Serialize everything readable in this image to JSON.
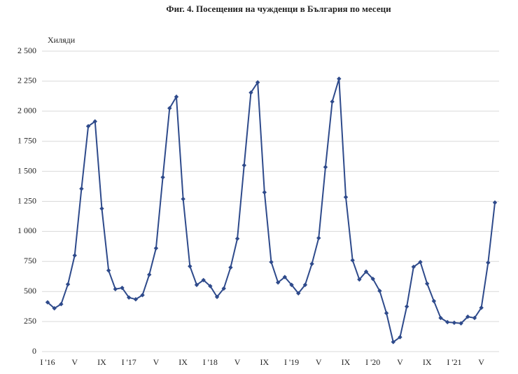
{
  "chart_data": {
    "type": "line",
    "title": "Фиг. 4. Посещения на чужденци в България по месеци",
    "y_label": "Хиляди",
    "categories": [
      "I '16",
      null,
      null,
      null,
      "V",
      null,
      null,
      null,
      "IX",
      null,
      null,
      null,
      "I '17",
      null,
      null,
      null,
      "V",
      null,
      null,
      null,
      "IX",
      null,
      null,
      null,
      "I '18",
      null,
      null,
      null,
      "V",
      null,
      null,
      null,
      "IX",
      null,
      null,
      null,
      "I '19",
      null,
      null,
      null,
      "V",
      null,
      null,
      null,
      "IX",
      null,
      null,
      null,
      "I '20",
      null,
      null,
      null,
      "V",
      null,
      null,
      null,
      "IX",
      null,
      null,
      null,
      "I '21",
      null,
      null,
      null,
      "V",
      null,
      null
    ],
    "series": [
      {
        "color": "#2e4a8b",
        "values": [
          410,
          360,
          395,
          560,
          800,
          1355,
          1875,
          1915,
          1190,
          675,
          520,
          530,
          450,
          435,
          470,
          640,
          860,
          1450,
          2025,
          2120,
          1270,
          710,
          555,
          595,
          545,
          455,
          525,
          700,
          940,
          1550,
          2155,
          2240,
          1325,
          745,
          575,
          620,
          555,
          485,
          555,
          730,
          945,
          1535,
          2080,
          2270,
          1285,
          760,
          600,
          665,
          605,
          505,
          320,
          80,
          120,
          375,
          705,
          745,
          565,
          420,
          280,
          245,
          240,
          235,
          290,
          280,
          365,
          740,
          1240
        ]
      }
    ],
    "ylim": [
      0,
      2500
    ],
    "yticks": [
      0,
      250,
      500,
      750,
      {
        "value": 1000,
        "label": "1 000"
      },
      {
        "value": 1250,
        "label": "1 250"
      },
      {
        "value": 1500,
        "label": "1 500"
      },
      {
        "value": 1750,
        "label": "1 750"
      },
      {
        "value": 2000,
        "label": "2 000"
      },
      {
        "value": 2250,
        "label": "2 250"
      },
      {
        "value": 2500,
        "label": "2 500"
      }
    ],
    "grid": true
  }
}
